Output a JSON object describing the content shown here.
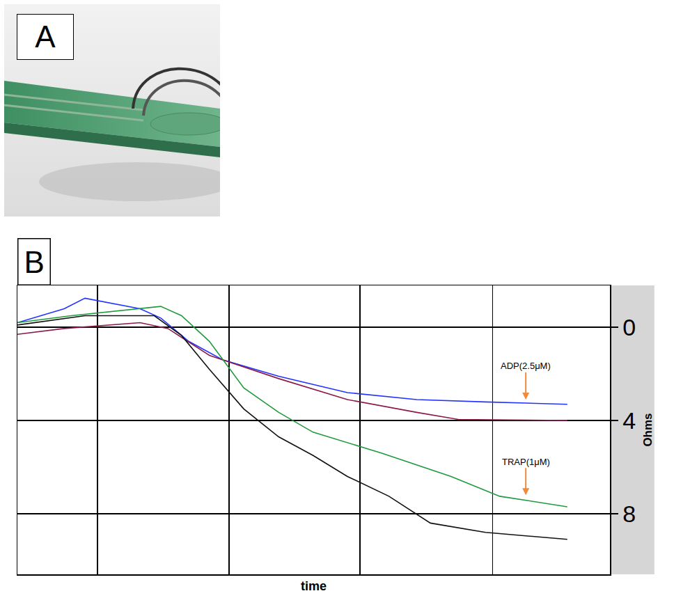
{
  "panel_a_label": "A",
  "chart_data": {
    "type": "line",
    "panel_label": "B",
    "x_label": "time",
    "y_label": "Ohms",
    "xlim": [
      0,
      10
    ],
    "xticks": [
      1.35,
      3.57,
      5.78,
      8.02
    ],
    "ylim": [
      -1.8,
      10.6
    ],
    "yticks": [
      0,
      4,
      8
    ],
    "tick_labels": "y",
    "grid": true,
    "series": [
      {
        "color": "#2233ff",
        "x": [
          0,
          0.79,
          1.14,
          2.07,
          2.42,
          2.89,
          3.47,
          4.41,
          5.57,
          6.74,
          7.9,
          9.28
        ],
        "values": [
          -0.2,
          -0.8,
          -1.25,
          -0.8,
          -0.4,
          0.6,
          1.4,
          2.1,
          2.8,
          3.1,
          3.2,
          3.3
        ]
      },
      {
        "color": "#8b1a4a",
        "x": [
          0,
          0.79,
          2.07,
          2.54,
          3.24,
          4.41,
          5.57,
          6.74,
          7.44,
          9.28
        ],
        "values": [
          0.3,
          0.05,
          -0.2,
          0.05,
          1.2,
          2.2,
          3.1,
          3.65,
          3.95,
          4.0
        ]
      },
      {
        "color": "#1f9a3a",
        "x": [
          0,
          0.91,
          2.42,
          2.77,
          3.24,
          3.82,
          4.41,
          4.99,
          6.15,
          7.32,
          8.14,
          9.28
        ],
        "values": [
          -0.2,
          -0.5,
          -0.9,
          -0.5,
          0.6,
          2.6,
          3.65,
          4.5,
          5.4,
          6.4,
          7.25,
          7.7
        ]
      },
      {
        "color": "#111111",
        "x": [
          0,
          1.14,
          2.31,
          2.77,
          3.24,
          3.82,
          4.41,
          4.99,
          5.57,
          6.27,
          6.97,
          7.9,
          9.28
        ],
        "values": [
          -0.1,
          -0.5,
          -0.5,
          0.35,
          1.8,
          3.5,
          4.7,
          5.5,
          6.4,
          7.25,
          8.4,
          8.8,
          9.1
        ]
      }
    ],
    "annotations": [
      {
        "text": "ADP(2.5μM)",
        "x": 8.58,
        "y": 3.1
      },
      {
        "text": "TRAP(1μM)",
        "x": 8.58,
        "y": 7.2
      }
    ]
  }
}
